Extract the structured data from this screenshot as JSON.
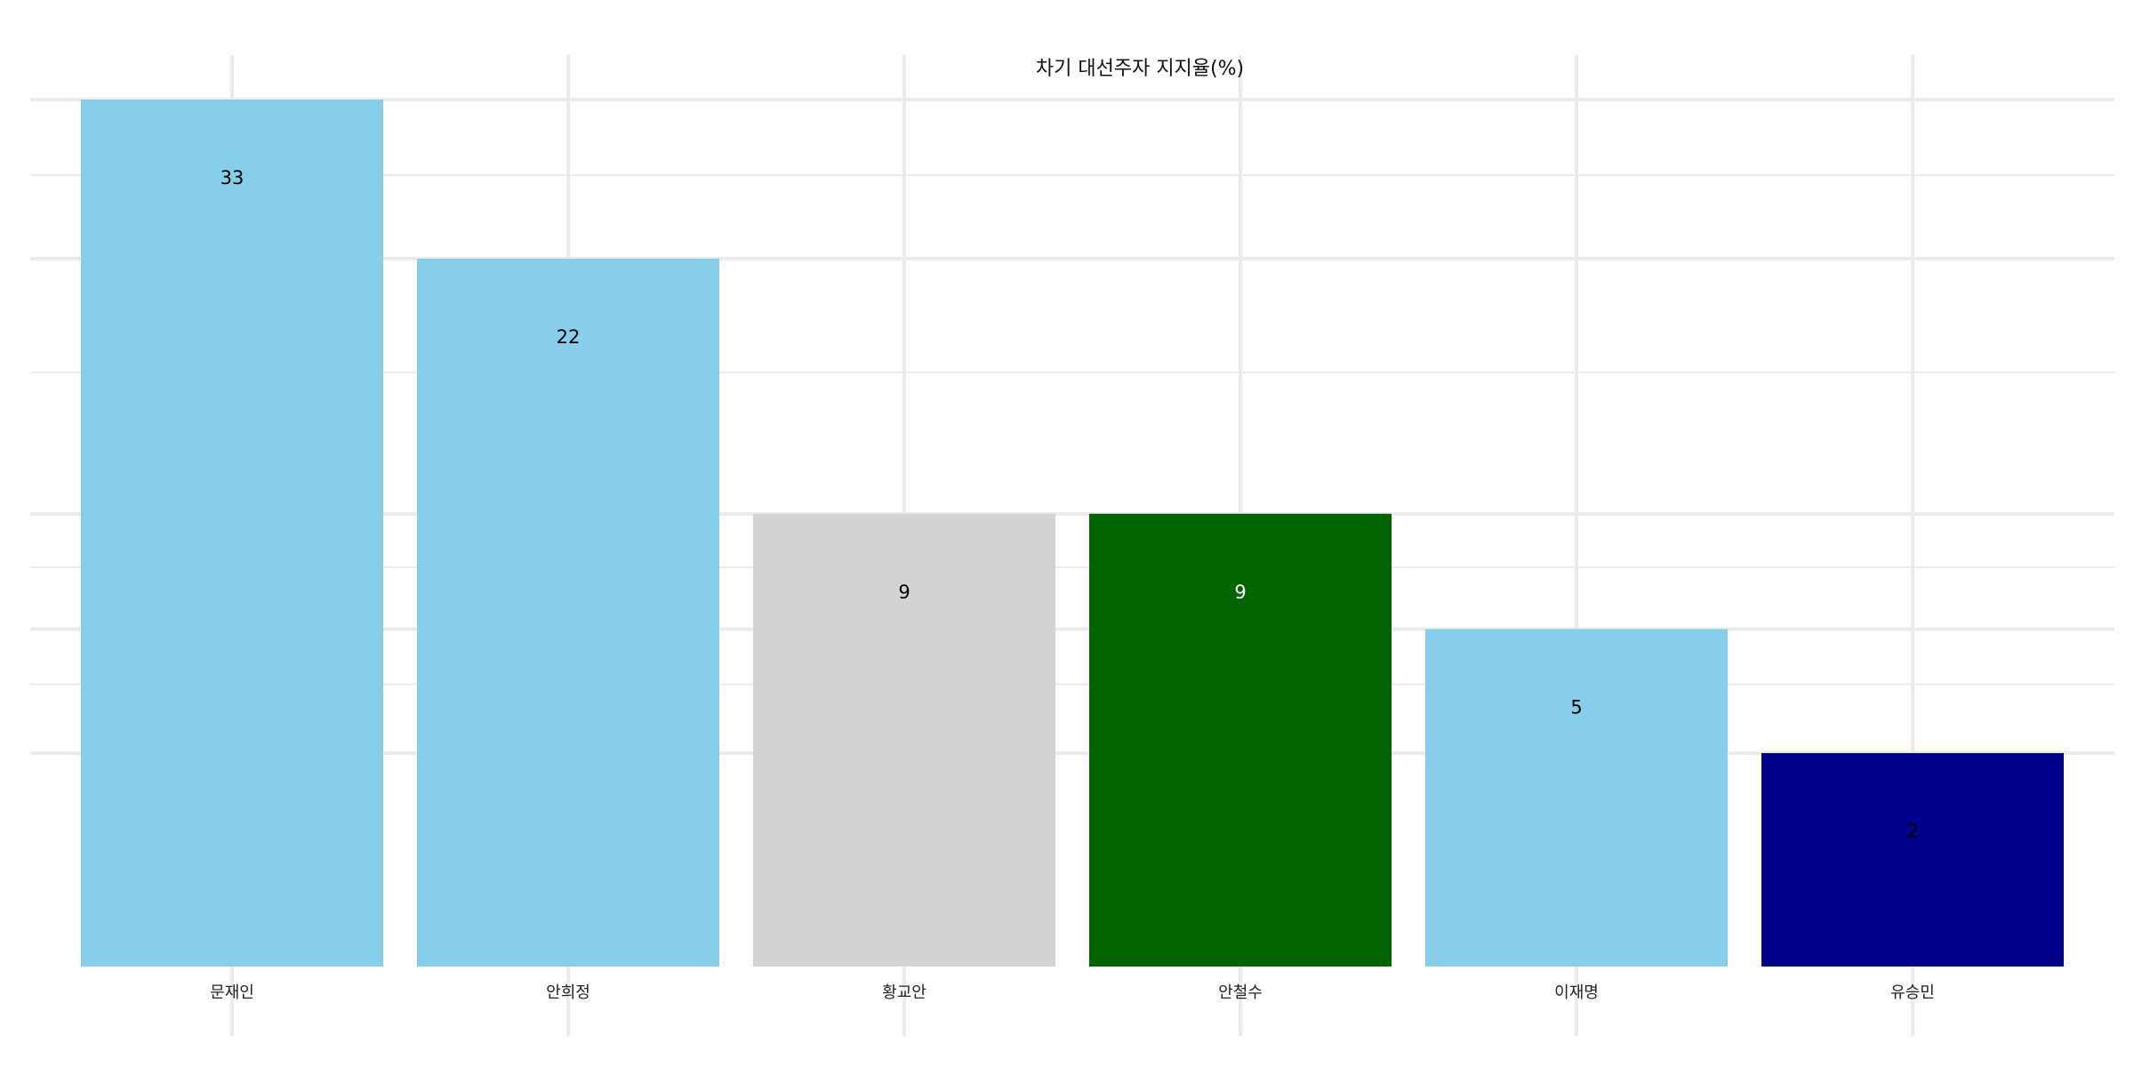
{
  "chart_data": {
    "type": "bar",
    "title": "차기 대선주자 지지율(%)",
    "xlabel": "",
    "ylabel": "",
    "categories": [
      "문재인",
      "안희정",
      "황교안",
      "안철수",
      "이재명",
      "유승민"
    ],
    "values": [
      33,
      22,
      9,
      9,
      5,
      2
    ],
    "data_labels": [
      "33",
      "22",
      "9",
      "9",
      "5",
      "2"
    ],
    "bar_colors": [
      "#87CEEB",
      "#87CEEB",
      "#D3D3D3",
      "#006400",
      "#87CEEB",
      "#00008B"
    ],
    "label_colors": [
      "#000000",
      "#000000",
      "#000000",
      "#ffffff",
      "#000000",
      "#000000"
    ],
    "ylim": [
      0,
      33
    ],
    "y_scale": "sqrt",
    "y_major_breaks": [
      2,
      5,
      9,
      22,
      33
    ],
    "y_minor_breaks": [
      3.5,
      7,
      15.5,
      27.5
    ],
    "grid": true,
    "legend": "none",
    "background": "#ffffff",
    "grid_color": "#ebebeb"
  }
}
